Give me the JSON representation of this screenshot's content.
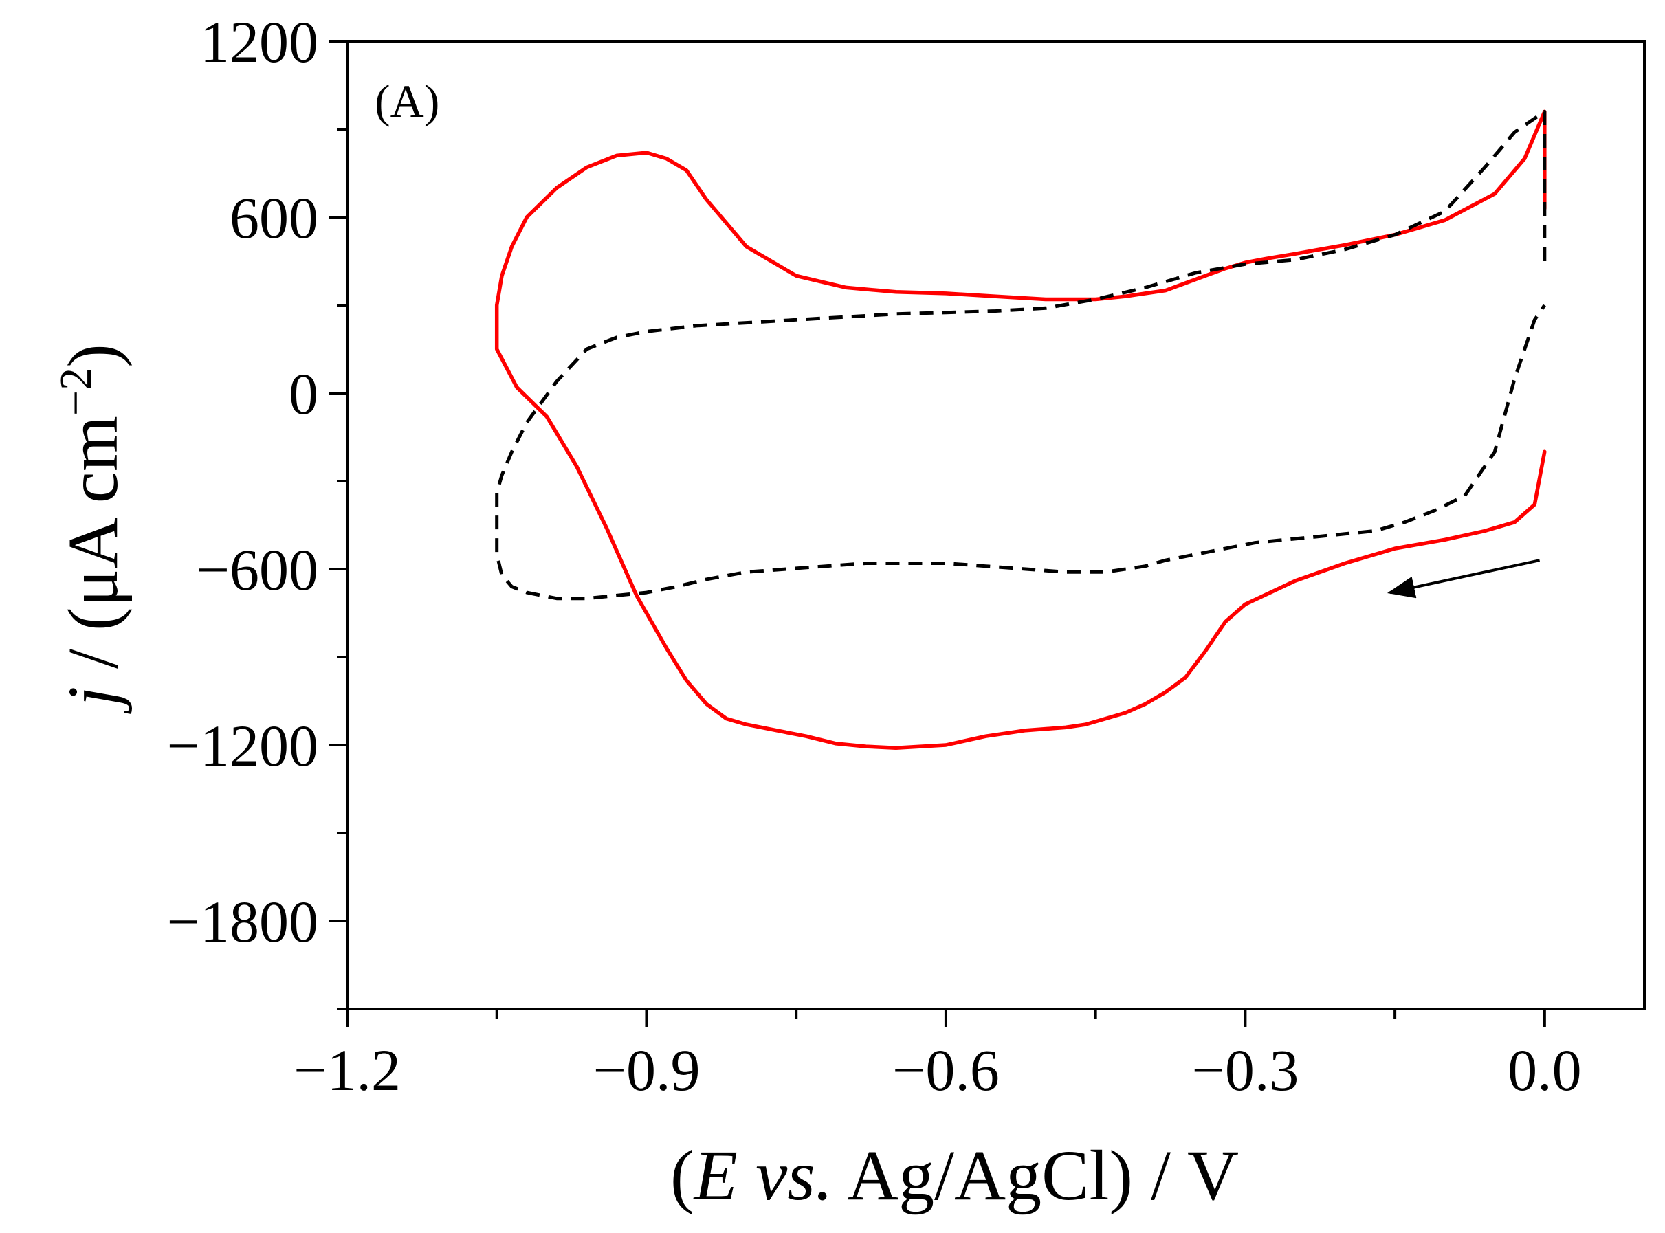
{
  "chart_data": {
    "type": "line",
    "panel_label": "(A)",
    "xlabel": {
      "open": "(",
      "var": "E",
      "vs": "vs.",
      "rest": "Ag/AgCl) / V"
    },
    "ylabel": {
      "var": "j",
      "rest": "/ (μA cm",
      "sup": "−2",
      "close": ")"
    },
    "xlim": [
      -1.2,
      0.1
    ],
    "ylim": [
      -2100,
      1200
    ],
    "x_ticks": [
      -1.2,
      -0.9,
      -0.6,
      -0.3,
      0.0
    ],
    "x_tick_labels": [
      "−1.2",
      "−0.9",
      "−0.6",
      "−0.3",
      "0.0"
    ],
    "y_ticks": [
      1200,
      600,
      0,
      -600,
      -1200,
      -1800
    ],
    "y_tick_labels": [
      "1200",
      "600",
      "0",
      "−600",
      "−1200",
      "−1800"
    ],
    "x_minor_step": 0.15,
    "y_minor_step": 300,
    "scan_direction_arrow": {
      "from": [
        -0.005,
        -570
      ],
      "to": [
        -0.155,
        -680
      ]
    },
    "series": [
      {
        "name": "red-solid",
        "color": "#ff0000",
        "style": "solid",
        "x": [
          0.0,
          0.0,
          -0.02,
          -0.05,
          -0.1,
          -0.15,
          -0.2,
          -0.25,
          -0.28,
          -0.3,
          -0.32,
          -0.34,
          -0.36,
          -0.38,
          -0.4,
          -0.42,
          -0.45,
          -0.5,
          -0.55,
          -0.6,
          -0.65,
          -0.7,
          -0.75,
          -0.8,
          -0.84,
          -0.86,
          -0.88,
          -0.9,
          -0.93,
          -0.96,
          -0.99,
          -1.02,
          -1.035,
          -1.045,
          -1.05,
          -1.05,
          -1.03,
          -1.0,
          -0.97,
          -0.94,
          -0.91,
          -0.88,
          -0.86,
          -0.84,
          -0.82,
          -0.8,
          -0.77,
          -0.74,
          -0.71,
          -0.68,
          -0.65,
          -0.6,
          -0.56,
          -0.52,
          -0.48,
          -0.46,
          -0.44,
          -0.42,
          -0.4,
          -0.38,
          -0.36,
          -0.34,
          -0.32,
          -0.3,
          -0.25,
          -0.2,
          -0.15,
          -0.1,
          -0.06,
          -0.03,
          -0.01,
          0.0
        ],
        "y": [
          630,
          960,
          800,
          680,
          590,
          540,
          505,
          475,
          458,
          445,
          425,
          400,
          375,
          350,
          340,
          330,
          320,
          320,
          330,
          340,
          345,
          360,
          400,
          500,
          660,
          760,
          800,
          820,
          810,
          770,
          700,
          600,
          500,
          400,
          300,
          150,
          20,
          -80,
          -250,
          -460,
          -690,
          -870,
          -980,
          -1060,
          -1110,
          -1130,
          -1150,
          -1170,
          -1195,
          -1205,
          -1210,
          -1200,
          -1170,
          -1150,
          -1140,
          -1130,
          -1110,
          -1090,
          -1060,
          -1020,
          -970,
          -880,
          -780,
          -720,
          -640,
          -580,
          -530,
          -500,
          -470,
          -440,
          -380,
          -200
        ]
      },
      {
        "name": "black-dashed",
        "color": "#000000",
        "style": "dashed",
        "x": [
          0.0,
          0.0,
          -0.03,
          -0.06,
          -0.1,
          -0.15,
          -0.2,
          -0.25,
          -0.3,
          -0.35,
          -0.4,
          -0.45,
          -0.5,
          -0.55,
          -0.6,
          -0.65,
          -0.7,
          -0.75,
          -0.8,
          -0.85,
          -0.9,
          -0.93,
          -0.96,
          -0.99,
          -1.02,
          -1.035,
          -1.045,
          -1.05,
          -1.05,
          -1.045,
          -1.035,
          -1.02,
          -0.99,
          -0.96,
          -0.93,
          -0.9,
          -0.87,
          -0.84,
          -0.8,
          -0.76,
          -0.72,
          -0.68,
          -0.64,
          -0.6,
          -0.56,
          -0.52,
          -0.48,
          -0.44,
          -0.4,
          -0.38,
          -0.35,
          -0.32,
          -0.29,
          -0.26,
          -0.23,
          -0.2,
          -0.17,
          -0.14,
          -0.11,
          -0.08,
          -0.05,
          -0.03,
          -0.01,
          0.0
        ],
        "y": [
          450,
          960,
          890,
          770,
          620,
          540,
          490,
          455,
          440,
          410,
          360,
          320,
          290,
          280,
          275,
          270,
          260,
          250,
          240,
          230,
          210,
          190,
          150,
          40,
          -100,
          -200,
          -280,
          -340,
          -550,
          -620,
          -660,
          -680,
          -700,
          -700,
          -690,
          -680,
          -660,
          -635,
          -610,
          -600,
          -590,
          -580,
          -580,
          -580,
          -590,
          -600,
          -610,
          -610,
          -590,
          -570,
          -550,
          -530,
          -510,
          -500,
          -490,
          -480,
          -470,
          -440,
          -400,
          -350,
          -200,
          50,
          250,
          300
        ]
      }
    ]
  }
}
